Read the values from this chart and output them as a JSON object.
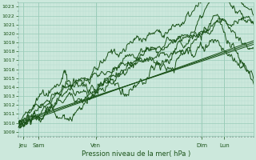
{
  "title": "Pression niveau de la mer( hPa )",
  "ylabel_values": [
    1009,
    1010,
    1011,
    1012,
    1013,
    1014,
    1015,
    1016,
    1017,
    1018,
    1019,
    1020,
    1021,
    1022,
    1023
  ],
  "ylim": [
    1008.5,
    1023.5
  ],
  "xlim": [
    0,
    1.0
  ],
  "x_ticks_pos": [
    0.02,
    0.085,
    0.33,
    0.78,
    0.875
  ],
  "x_tick_labels": [
    "Jeu",
    "Sam",
    "Ven",
    "Dim",
    "Lun"
  ],
  "bg_color": "#cce8dc",
  "grid_major_color": "#99ccb8",
  "grid_minor_color": "#b8ddd0",
  "line_color_dark": "#1a5218",
  "line_color_mid": "#2d7a2a",
  "num_points": 400
}
